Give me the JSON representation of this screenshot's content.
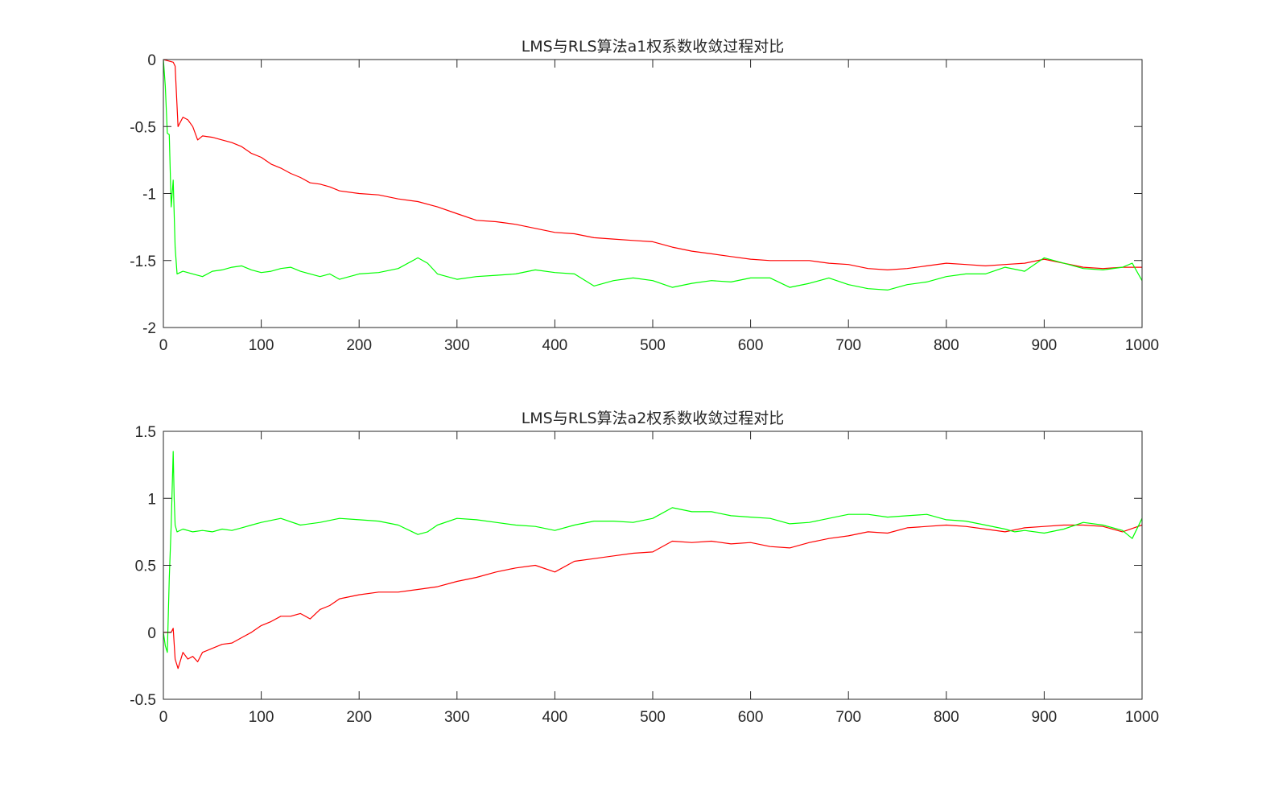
{
  "chart_data": [
    {
      "type": "line",
      "title": "LMS与RLS算法a1权系数收敛过程对比",
      "xlabel": "",
      "ylabel": "",
      "xlim": [
        0,
        1000
      ],
      "ylim": [
        -2,
        0
      ],
      "xticks": [
        0,
        100,
        200,
        300,
        400,
        500,
        600,
        700,
        800,
        900,
        1000
      ],
      "yticks": [
        0,
        -0.5,
        -1,
        -1.5,
        -2
      ],
      "xtick_labels": [
        "0",
        "100",
        "200",
        "300",
        "400",
        "500",
        "600",
        "700",
        "800",
        "900",
        "1000"
      ],
      "ytick_labels": [
        "0",
        "-0.5",
        "-1",
        "-1.5",
        "-2"
      ],
      "grid": false,
      "series": [
        {
          "color": "#ff0000",
          "x": [
            0,
            10,
            12,
            15,
            20,
            25,
            30,
            35,
            40,
            50,
            60,
            70,
            80,
            90,
            100,
            110,
            120,
            130,
            140,
            150,
            160,
            170,
            180,
            200,
            220,
            240,
            260,
            280,
            300,
            320,
            340,
            360,
            380,
            400,
            420,
            440,
            460,
            480,
            500,
            520,
            540,
            560,
            580,
            600,
            620,
            640,
            660,
            680,
            700,
            720,
            740,
            760,
            780,
            800,
            820,
            840,
            860,
            880,
            900,
            920,
            940,
            960,
            980,
            1000
          ],
          "y": [
            0,
            -0.02,
            -0.05,
            -0.5,
            -0.43,
            -0.45,
            -0.5,
            -0.6,
            -0.57,
            -0.58,
            -0.6,
            -0.62,
            -0.65,
            -0.7,
            -0.73,
            -0.78,
            -0.81,
            -0.85,
            -0.88,
            -0.92,
            -0.93,
            -0.95,
            -0.98,
            -1.0,
            -1.01,
            -1.04,
            -1.06,
            -1.1,
            -1.15,
            -1.2,
            -1.21,
            -1.23,
            -1.26,
            -1.29,
            -1.3,
            -1.33,
            -1.34,
            -1.35,
            -1.36,
            -1.4,
            -1.43,
            -1.45,
            -1.47,
            -1.49,
            -1.5,
            -1.5,
            -1.5,
            -1.52,
            -1.53,
            -1.56,
            -1.57,
            -1.56,
            -1.54,
            -1.52,
            -1.53,
            -1.54,
            -1.53,
            -1.52,
            -1.49,
            -1.52,
            -1.55,
            -1.56,
            -1.55,
            -1.55
          ]
        },
        {
          "color": "#00ff00",
          "x": [
            0,
            2,
            4,
            6,
            8,
            10,
            12,
            14,
            20,
            30,
            40,
            50,
            60,
            70,
            80,
            90,
            100,
            110,
            120,
            130,
            140,
            150,
            160,
            170,
            180,
            200,
            220,
            240,
            260,
            270,
            280,
            300,
            320,
            340,
            360,
            380,
            400,
            420,
            440,
            460,
            480,
            500,
            520,
            540,
            560,
            580,
            600,
            620,
            640,
            660,
            680,
            700,
            720,
            740,
            760,
            780,
            800,
            820,
            840,
            860,
            880,
            900,
            920,
            940,
            960,
            980,
            990,
            1000
          ],
          "y": [
            0,
            -0.2,
            -0.55,
            -0.56,
            -1.1,
            -0.9,
            -1.4,
            -1.6,
            -1.58,
            -1.6,
            -1.62,
            -1.58,
            -1.57,
            -1.55,
            -1.54,
            -1.57,
            -1.59,
            -1.58,
            -1.56,
            -1.55,
            -1.58,
            -1.6,
            -1.62,
            -1.6,
            -1.64,
            -1.6,
            -1.59,
            -1.56,
            -1.48,
            -1.52,
            -1.6,
            -1.64,
            -1.62,
            -1.61,
            -1.6,
            -1.57,
            -1.59,
            -1.6,
            -1.69,
            -1.65,
            -1.63,
            -1.65,
            -1.7,
            -1.67,
            -1.65,
            -1.66,
            -1.63,
            -1.63,
            -1.7,
            -1.67,
            -1.63,
            -1.68,
            -1.71,
            -1.72,
            -1.68,
            -1.66,
            -1.62,
            -1.6,
            -1.6,
            -1.55,
            -1.58,
            -1.48,
            -1.52,
            -1.56,
            -1.57,
            -1.55,
            -1.52,
            -1.65
          ]
        }
      ]
    },
    {
      "type": "line",
      "title": "LMS与RLS算法a2权系数收敛过程对比",
      "xlabel": "",
      "ylabel": "",
      "xlim": [
        0,
        1000
      ],
      "ylim": [
        -0.5,
        1.5
      ],
      "xticks": [
        0,
        100,
        200,
        300,
        400,
        500,
        600,
        700,
        800,
        900,
        1000
      ],
      "yticks": [
        1.5,
        1,
        0.5,
        0,
        -0.5
      ],
      "xtick_labels": [
        "0",
        "100",
        "200",
        "300",
        "400",
        "500",
        "600",
        "700",
        "800",
        "900",
        "1000"
      ],
      "ytick_labels": [
        "1.5",
        "1",
        "0.5",
        "0",
        "-0.5"
      ],
      "grid": false,
      "series": [
        {
          "color": "#ff0000",
          "x": [
            0,
            8,
            10,
            12,
            15,
            20,
            25,
            30,
            35,
            40,
            50,
            60,
            70,
            80,
            90,
            100,
            110,
            120,
            130,
            140,
            150,
            160,
            170,
            180,
            200,
            220,
            240,
            260,
            280,
            300,
            320,
            340,
            360,
            380,
            400,
            420,
            440,
            460,
            480,
            500,
            520,
            540,
            560,
            580,
            600,
            620,
            640,
            660,
            680,
            700,
            720,
            740,
            760,
            780,
            800,
            820,
            840,
            860,
            880,
            900,
            920,
            940,
            960,
            980,
            1000
          ],
          "y": [
            0,
            0,
            0.03,
            -0.2,
            -0.27,
            -0.15,
            -0.2,
            -0.18,
            -0.22,
            -0.15,
            -0.12,
            -0.09,
            -0.08,
            -0.04,
            0.0,
            0.05,
            0.08,
            0.12,
            0.12,
            0.14,
            0.1,
            0.17,
            0.2,
            0.25,
            0.28,
            0.3,
            0.3,
            0.32,
            0.34,
            0.38,
            0.41,
            0.45,
            0.48,
            0.5,
            0.45,
            0.53,
            0.55,
            0.57,
            0.59,
            0.6,
            0.68,
            0.67,
            0.68,
            0.66,
            0.67,
            0.64,
            0.63,
            0.67,
            0.7,
            0.72,
            0.75,
            0.74,
            0.78,
            0.79,
            0.8,
            0.79,
            0.77,
            0.75,
            0.78,
            0.79,
            0.8,
            0.8,
            0.79,
            0.75,
            0.8
          ]
        },
        {
          "color": "#00ff00",
          "x": [
            0,
            2,
            4,
            6,
            8,
            10,
            11,
            12,
            14,
            20,
            30,
            40,
            50,
            60,
            70,
            80,
            90,
            100,
            120,
            140,
            160,
            180,
            200,
            220,
            240,
            260,
            270,
            280,
            300,
            320,
            340,
            360,
            380,
            400,
            420,
            440,
            460,
            480,
            500,
            520,
            540,
            560,
            580,
            600,
            620,
            640,
            660,
            680,
            700,
            720,
            740,
            760,
            780,
            800,
            820,
            840,
            860,
            870,
            880,
            900,
            920,
            940,
            960,
            980,
            990,
            1000
          ],
          "y": [
            0,
            -0.1,
            -0.15,
            0.4,
            0.8,
            1.35,
            1.0,
            0.8,
            0.75,
            0.77,
            0.75,
            0.76,
            0.75,
            0.77,
            0.76,
            0.78,
            0.8,
            0.82,
            0.85,
            0.8,
            0.82,
            0.85,
            0.84,
            0.83,
            0.8,
            0.73,
            0.75,
            0.8,
            0.85,
            0.84,
            0.82,
            0.8,
            0.79,
            0.76,
            0.8,
            0.83,
            0.83,
            0.82,
            0.85,
            0.93,
            0.9,
            0.9,
            0.87,
            0.86,
            0.85,
            0.81,
            0.82,
            0.85,
            0.88,
            0.88,
            0.86,
            0.87,
            0.88,
            0.84,
            0.83,
            0.8,
            0.77,
            0.75,
            0.76,
            0.74,
            0.77,
            0.82,
            0.8,
            0.76,
            0.7,
            0.85
          ]
        }
      ]
    }
  ]
}
